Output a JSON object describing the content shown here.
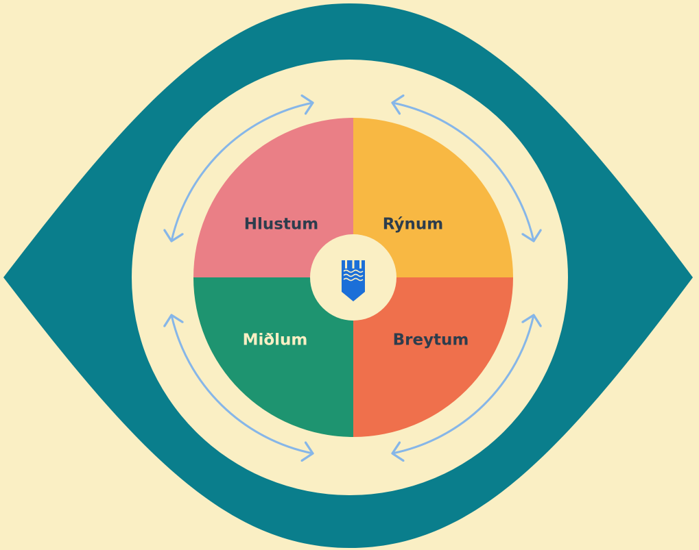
{
  "quadrants": [
    "Hlustum",
    "Rýnum",
    "Miðlum",
    "Breytum"
  ]
}
